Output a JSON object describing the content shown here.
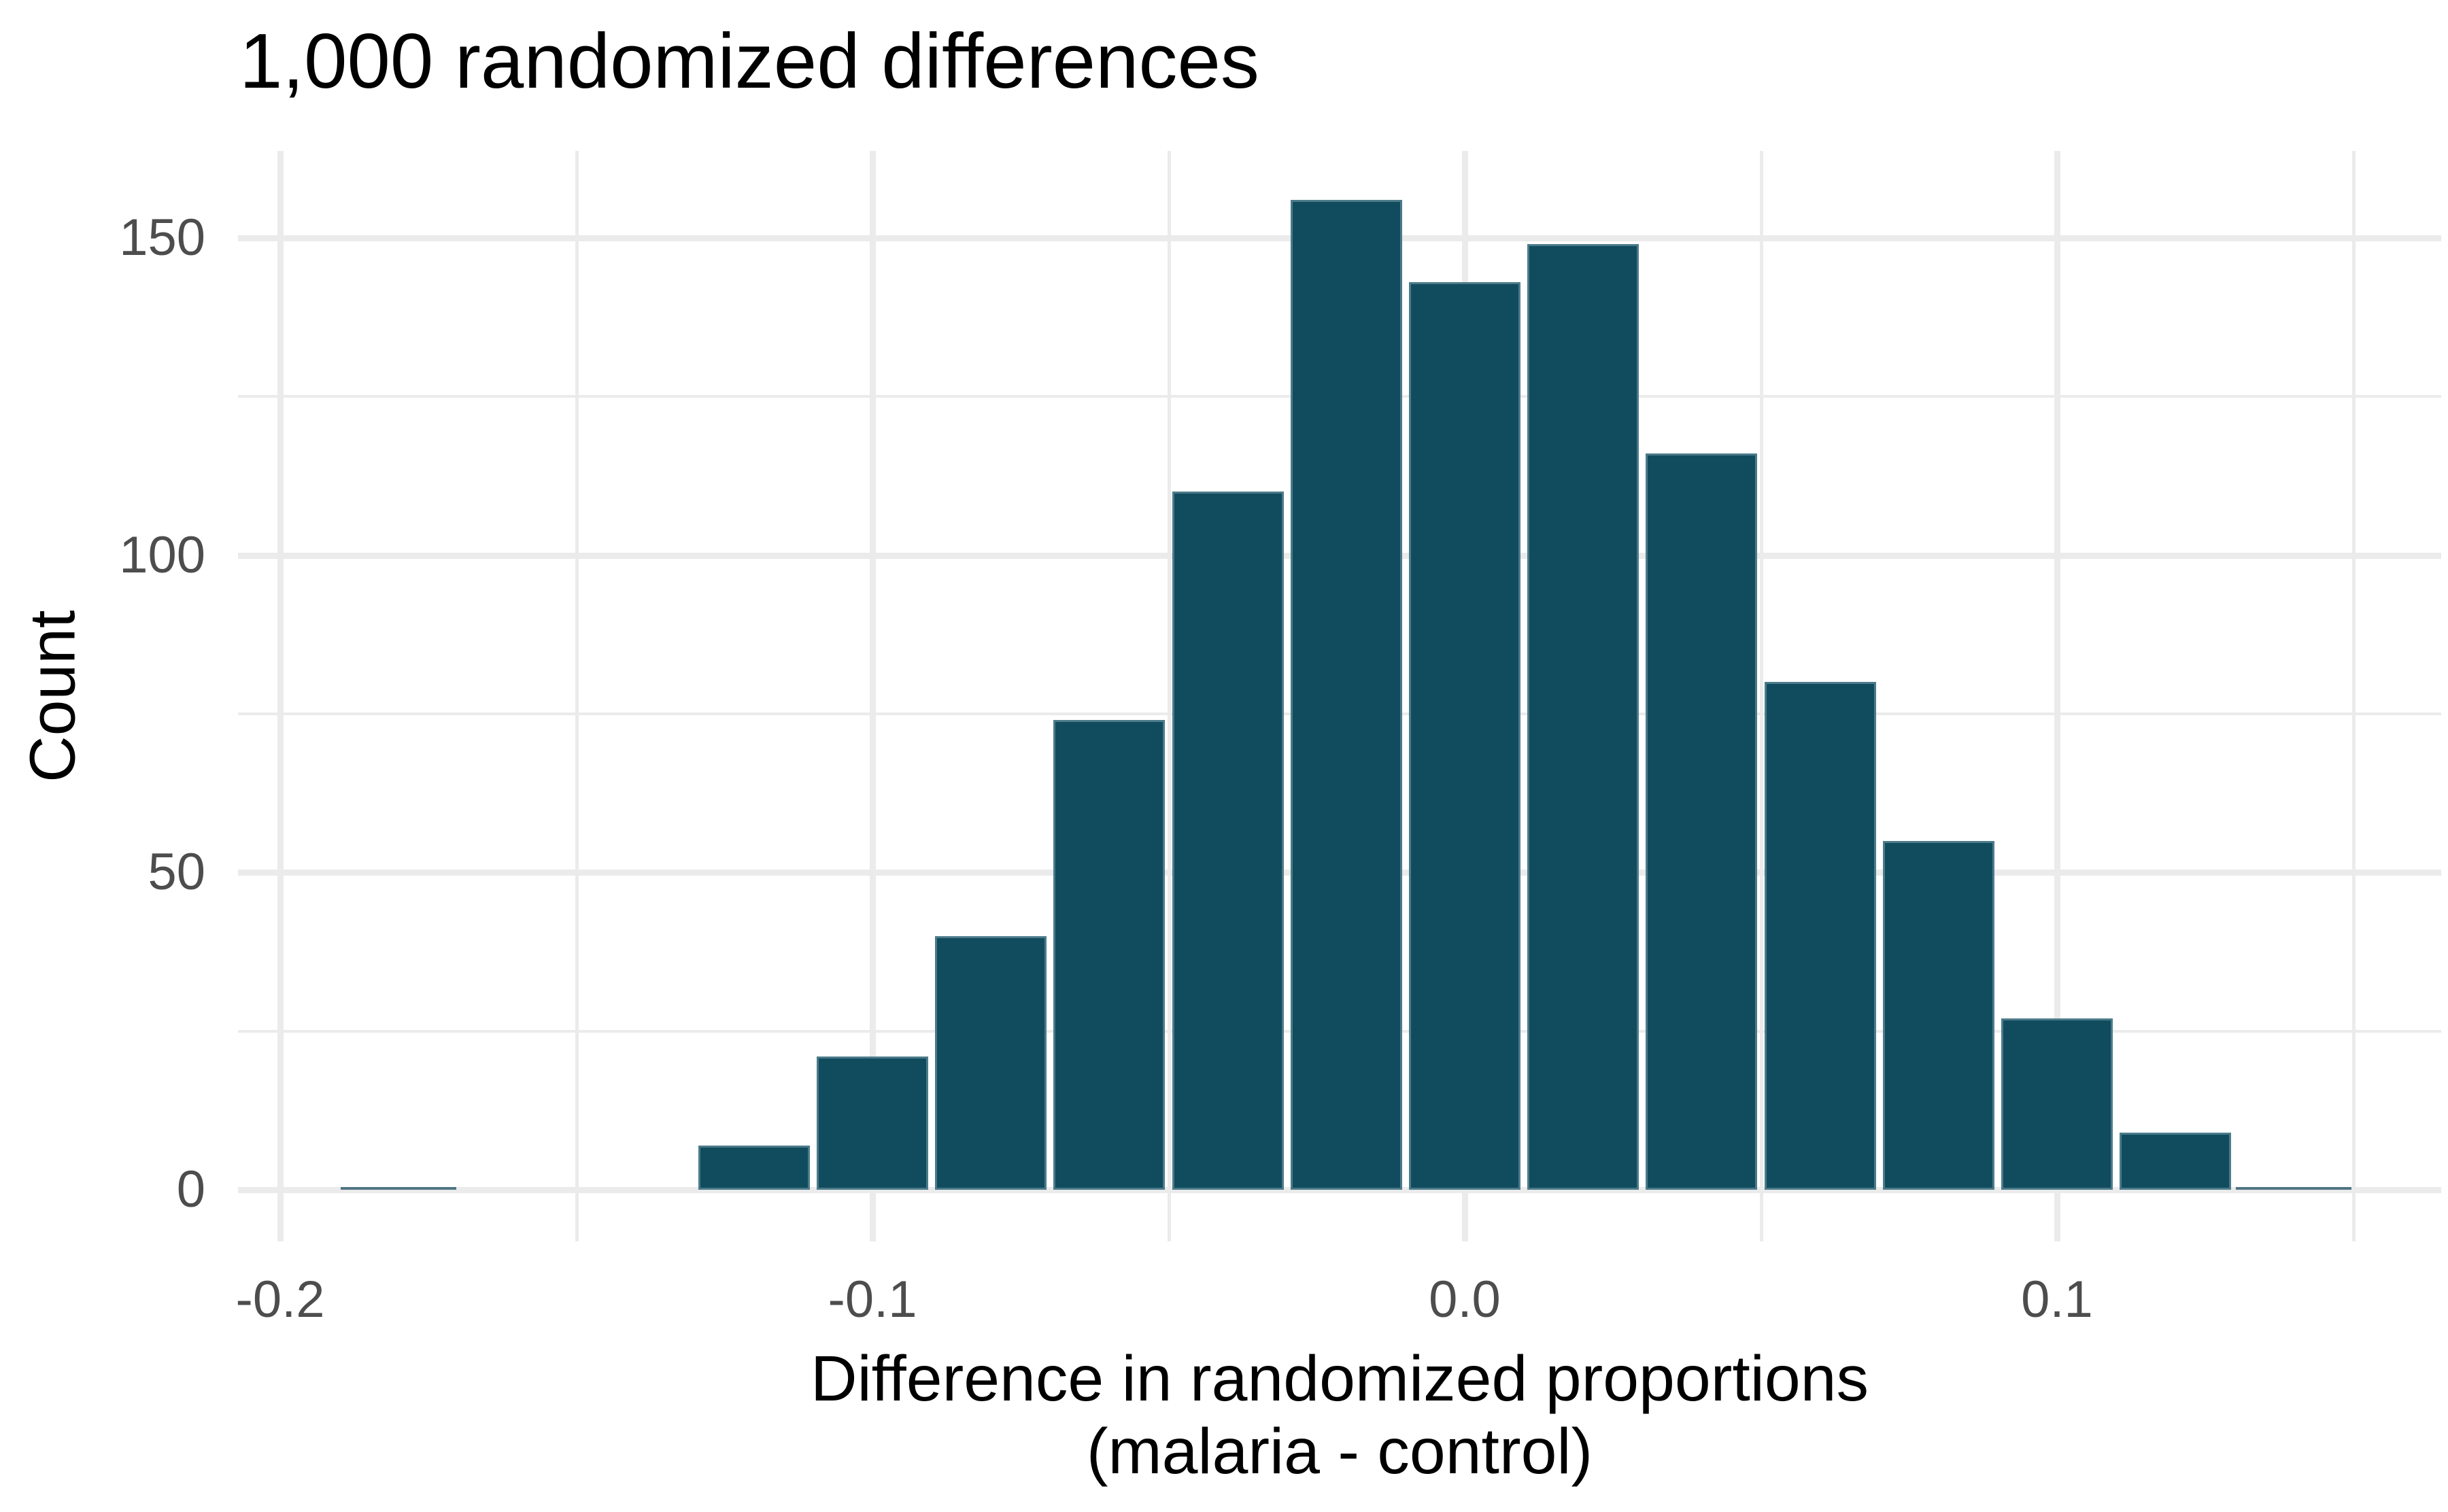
{
  "title": "1,000 randomized differences",
  "axes": {
    "x": {
      "label_line1": "Difference in randomized proportions",
      "label_line2": "(malaria - control)",
      "major_ticks": [
        -0.2,
        -0.1,
        0.0,
        0.1
      ],
      "major_tick_labels": [
        "-0.2",
        "-0.1",
        "0.0",
        "0.1"
      ],
      "minor_ticks": [
        -0.15,
        -0.05,
        0.05,
        0.15
      ],
      "domain": [
        -0.207,
        0.165
      ]
    },
    "y": {
      "label": "Count",
      "major_ticks": [
        0,
        50,
        100,
        150
      ],
      "major_tick_labels": [
        "0",
        "50",
        "100",
        "150"
      ],
      "minor_ticks": [
        25,
        75,
        125
      ],
      "domain": [
        0,
        164
      ]
    }
  },
  "chart_data": {
    "type": "bar",
    "subtype": "histogram",
    "title": "1,000 randomized differences",
    "xlabel": "Difference in randomized proportions (malaria - control)",
    "ylabel": "Count",
    "bin_width": 0.02,
    "bin_centers": [
      -0.12,
      -0.1,
      -0.08,
      -0.06,
      -0.04,
      -0.02,
      0.0,
      0.02,
      0.04,
      0.06,
      0.08,
      0.1,
      0.12
    ],
    "values": [
      7,
      21,
      40,
      74,
      110,
      156,
      143,
      149,
      116,
      80,
      55,
      27,
      9
    ],
    "zero_count_bin_centers": [
      -0.18,
      0.14
    ],
    "xlim": [
      -0.207,
      0.165
    ],
    "ylim": [
      0,
      164
    ],
    "grid": "major-and-minor, light gray on white",
    "legend_position": "none"
  },
  "colors": {
    "bar": "#114C5E",
    "zero_bar_stroke": "#4F7583",
    "grid": "#EBEBEB",
    "tick_label": "#4D4D4D",
    "text": "#000000",
    "background": "#FFFFFF"
  }
}
